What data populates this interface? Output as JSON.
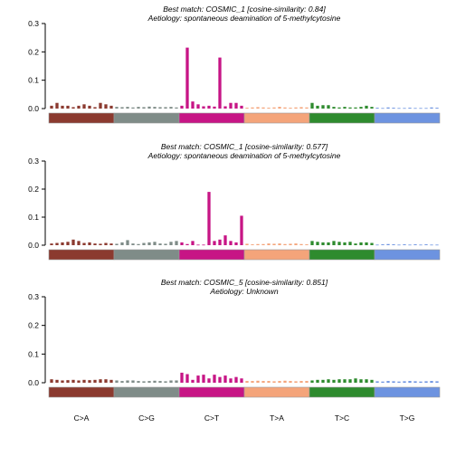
{
  "mutation_types": [
    "C>A",
    "C>G",
    "C>T",
    "T>A",
    "T>C",
    "T>G"
  ],
  "type_colors": [
    "#8b3a2f",
    "#7f8c88",
    "#c71585",
    "#f4a47a",
    "#2e8b2e",
    "#6d93e0"
  ],
  "chart_data": [
    {
      "type": "bar",
      "title": "Best match: COSMIC_1 [cosine-similarity: 0.84]",
      "subtitle": "Aetiology: spontaneous deamination of 5-methylcytosine",
      "ylim": [
        0,
        0.3
      ],
      "yticks": [
        "0.0",
        "0.1",
        "0.2",
        "0.3"
      ],
      "values": [
        0.01,
        0.02,
        0.01,
        0.01,
        0.005,
        0.01,
        0.015,
        0.01,
        0.005,
        0.02,
        0.015,
        0.01,
        0.006,
        0.005,
        0.006,
        0.004,
        0.006,
        0.005,
        0.007,
        0.006,
        0.005,
        0.005,
        0.006,
        0.004,
        0.01,
        0.215,
        0.025,
        0.015,
        0.008,
        0.01,
        0.007,
        0.18,
        0.008,
        0.02,
        0.02,
        0.01,
        0.003,
        0.004,
        0.005,
        0.004,
        0.003,
        0.004,
        0.006,
        0.004,
        0.003,
        0.004,
        0.005,
        0.004,
        0.02,
        0.01,
        0.012,
        0.012,
        0.006,
        0.004,
        0.006,
        0.004,
        0.004,
        0.006,
        0.01,
        0.006,
        0.003,
        0.002,
        0.004,
        0.003,
        0.002,
        0.002,
        0.003,
        0.002,
        0.002,
        0.002,
        0.004,
        0.003
      ]
    },
    {
      "type": "bar",
      "title": "Best match: COSMIC_1 [cosine-similarity: 0.577]",
      "subtitle": "Aetiology: spontaneous deamination of 5-methylcytosine",
      "ylim": [
        0,
        0.3
      ],
      "yticks": [
        "0.0",
        "0.1",
        "0.2",
        "0.3"
      ],
      "values": [
        0.006,
        0.008,
        0.01,
        0.012,
        0.02,
        0.015,
        0.008,
        0.01,
        0.006,
        0.005,
        0.008,
        0.006,
        0.005,
        0.01,
        0.018,
        0.006,
        0.004,
        0.008,
        0.01,
        0.012,
        0.006,
        0.005,
        0.012,
        0.015,
        0.01,
        0.004,
        0.015,
        0.002,
        0.002,
        0.19,
        0.015,
        0.02,
        0.035,
        0.015,
        0.01,
        0.105,
        0.005,
        0.003,
        0.004,
        0.004,
        0.006,
        0.005,
        0.006,
        0.004,
        0.005,
        0.006,
        0.004,
        0.003,
        0.015,
        0.012,
        0.01,
        0.01,
        0.015,
        0.012,
        0.01,
        0.012,
        0.006,
        0.01,
        0.01,
        0.008,
        0.002,
        0.003,
        0.004,
        0.003,
        0.002,
        0.003,
        0.002,
        0.003,
        0.002,
        0.003,
        0.002,
        0.002
      ]
    },
    {
      "type": "bar",
      "title": "Best match: COSMIC_5 [cosine-similarity: 0.851]",
      "subtitle": "Aetiology: Unknown",
      "ylim": [
        0,
        0.3
      ],
      "yticks": [
        "0.0",
        "0.1",
        "0.2",
        "0.3"
      ],
      "values": [
        0.012,
        0.01,
        0.008,
        0.009,
        0.01,
        0.008,
        0.01,
        0.009,
        0.01,
        0.012,
        0.012,
        0.01,
        0.008,
        0.006,
        0.008,
        0.008,
        0.006,
        0.005,
        0.006,
        0.007,
        0.006,
        0.005,
        0.008,
        0.008,
        0.035,
        0.03,
        0.01,
        0.025,
        0.028,
        0.015,
        0.028,
        0.02,
        0.025,
        0.015,
        0.02,
        0.015,
        0.006,
        0.006,
        0.007,
        0.006,
        0.006,
        0.005,
        0.006,
        0.007,
        0.006,
        0.005,
        0.006,
        0.006,
        0.008,
        0.01,
        0.01,
        0.012,
        0.01,
        0.012,
        0.012,
        0.012,
        0.015,
        0.012,
        0.012,
        0.01,
        0.005,
        0.004,
        0.006,
        0.005,
        0.004,
        0.005,
        0.006,
        0.005,
        0.004,
        0.005,
        0.006,
        0.005
      ]
    }
  ]
}
